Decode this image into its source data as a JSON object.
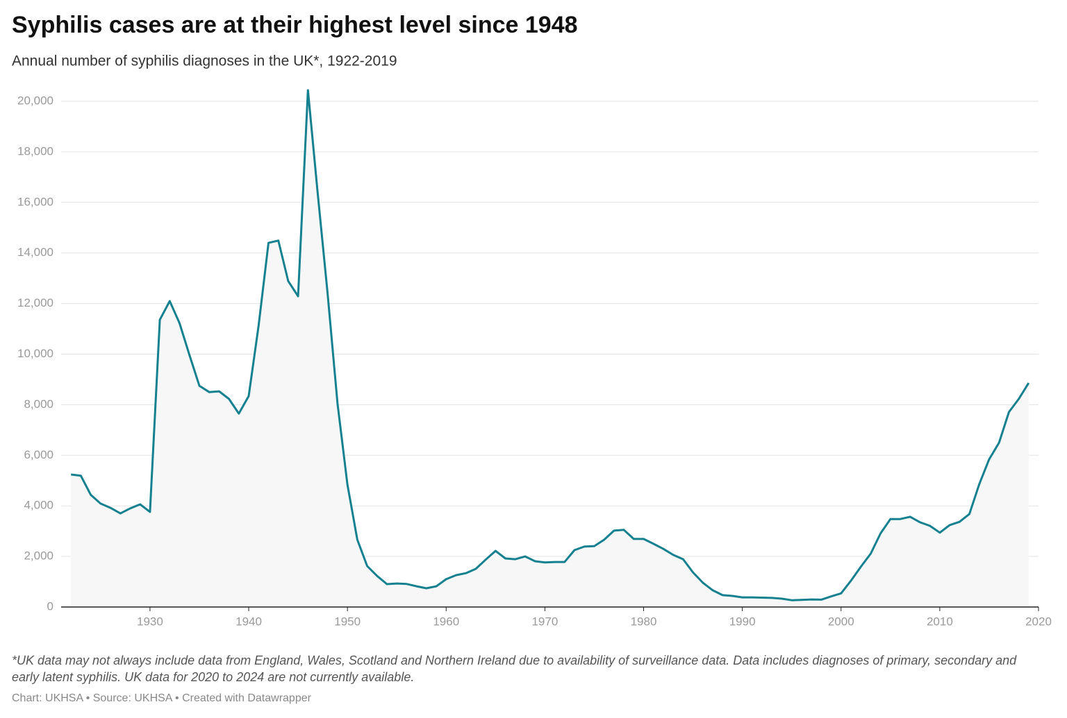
{
  "chart_data": {
    "type": "line",
    "title": "Syphilis cases are at their highest level since 1948",
    "subtitle": "Annual number of syphilis diagnoses in the UK*, 1922-2019",
    "note": "*UK data may not always include data from England, Wales, Scotland and Northern Ireland due to availability of surveillance data. Data includes diagnoses of primary, secondary and early latent syphilis. UK data for 2020 to 2024 are not currently available.",
    "credits": "Chart: UKHSA • Source: UKHSA • Created with Datawrapper",
    "x": [
      1922,
      1923,
      1924,
      1925,
      1926,
      1927,
      1928,
      1929,
      1930,
      1931,
      1932,
      1933,
      1934,
      1935,
      1936,
      1937,
      1938,
      1939,
      1940,
      1941,
      1942,
      1943,
      1944,
      1945,
      1946,
      1947,
      1948,
      1949,
      1950,
      1951,
      1952,
      1953,
      1954,
      1955,
      1956,
      1957,
      1958,
      1959,
      1960,
      1961,
      1962,
      1963,
      1964,
      1965,
      1966,
      1967,
      1968,
      1969,
      1970,
      1971,
      1972,
      1973,
      1974,
      1975,
      1976,
      1977,
      1978,
      1979,
      1980,
      1981,
      1982,
      1983,
      1984,
      1985,
      1986,
      1987,
      1988,
      1989,
      1990,
      1991,
      1992,
      1993,
      1994,
      1995,
      1996,
      1997,
      1998,
      1999,
      2000,
      2001,
      2002,
      2003,
      2004,
      2005,
      2006,
      2007,
      2008,
      2009,
      2010,
      2011,
      2012,
      2013,
      2014,
      2015,
      2016,
      2017,
      2018,
      2019
    ],
    "series": [
      {
        "color": "#15808f",
        "area_color": "#f7f7f7",
        "values": [
          5240,
          5190,
          4440,
          4090,
          3920,
          3700,
          3900,
          4060,
          3760,
          11360,
          12100,
          11220,
          9960,
          8750,
          8500,
          8530,
          8230,
          7650,
          8340,
          11110,
          14400,
          14490,
          12890,
          12290,
          20440,
          16320,
          12370,
          8040,
          4830,
          2660,
          1620,
          1230,
          905,
          930,
          910,
          820,
          740,
          820,
          1100,
          1260,
          1340,
          1510,
          1870,
          2220,
          1920,
          1890,
          2000,
          1810,
          1760,
          1780,
          1780,
          2250,
          2390,
          2410,
          2660,
          3020,
          3050,
          2690,
          2690,
          2500,
          2300,
          2060,
          1890,
          1370,
          960,
          660,
          470,
          440,
          380,
          380,
          370,
          360,
          330,
          270,
          280,
          300,
          290,
          420,
          540,
          1040,
          1590,
          2110,
          2910,
          3480,
          3480,
          3570,
          3350,
          3210,
          2940,
          3240,
          3370,
          3680,
          4860,
          5840,
          6500,
          7710,
          8230,
          8860
        ]
      }
    ],
    "xlim": [
      1921,
      2020
    ],
    "xticks": [
      1930,
      1940,
      1950,
      1960,
      1970,
      1980,
      1990,
      2000,
      2010,
      2020
    ],
    "ylim": [
      0,
      20000
    ],
    "yticks": [
      0,
      {
        "value": 2000,
        "label": "2,000"
      },
      {
        "value": 4000,
        "label": "4,000"
      },
      {
        "value": 6000,
        "label": "6,000"
      },
      {
        "value": 8000,
        "label": "8,000"
      },
      {
        "value": 10000,
        "label": "10,000"
      },
      {
        "value": 12000,
        "label": "12,000"
      },
      {
        "value": 14000,
        "label": "14,000"
      },
      {
        "value": 16000,
        "label": "16,000"
      },
      {
        "value": 18000,
        "label": "18,000"
      },
      {
        "value": 20000,
        "label": "20,000"
      }
    ],
    "grid": true
  }
}
